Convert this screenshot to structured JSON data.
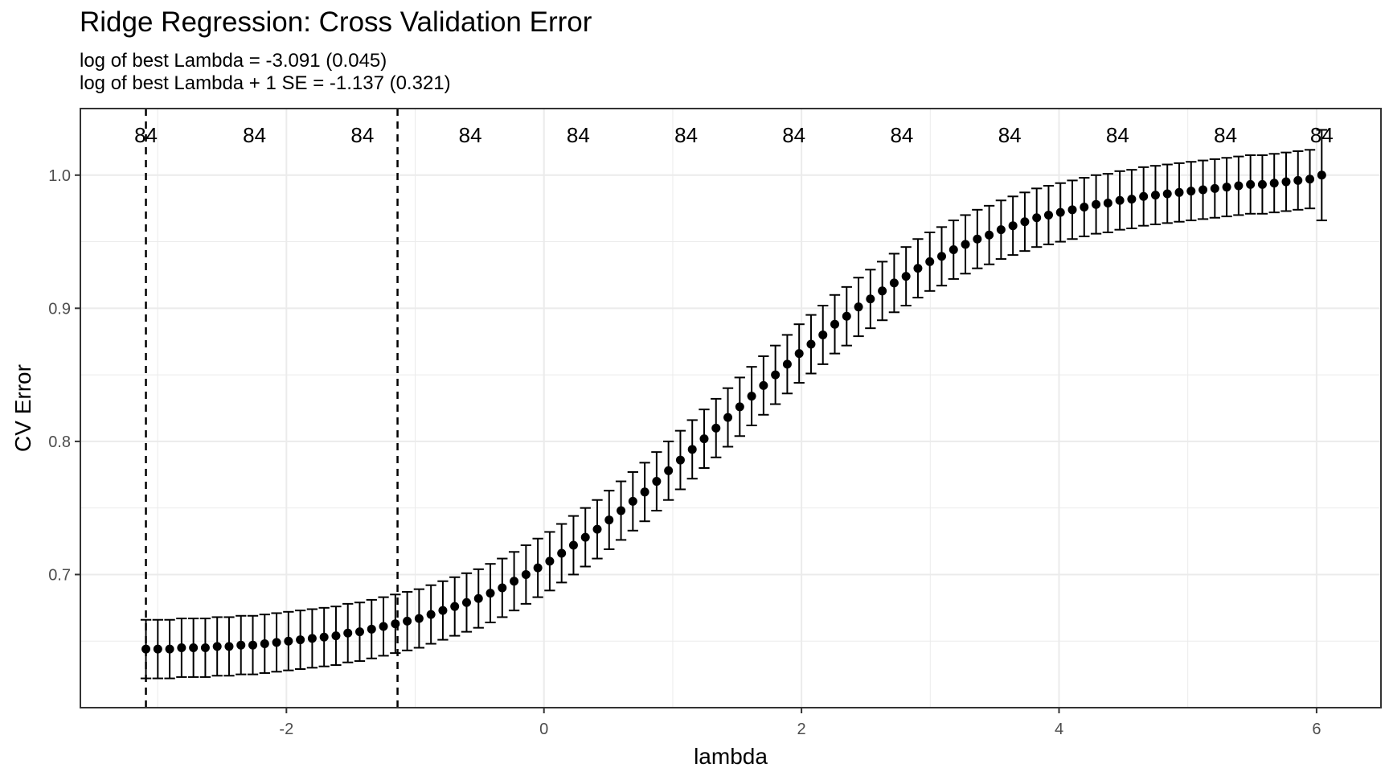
{
  "chart_data": {
    "type": "scatter",
    "title": "Ridge Regression: Cross Validation Error",
    "subtitle_lines": [
      "log of best Lambda = -3.091  (0.045)",
      "log of best Lambda + 1 SE = -1.137 (0.321)"
    ],
    "xlabel": "lambda",
    "ylabel": "CV Error",
    "xlim": [
      -3.6,
      6.5
    ],
    "ylim": [
      0.6,
      1.05
    ],
    "x_ticks": [
      -2,
      0,
      2,
      4,
      6
    ],
    "x_tick_labels": [
      "-2",
      "0",
      "2",
      "4",
      "6"
    ],
    "y_ticks": [
      0.7,
      0.8,
      0.9,
      1.0
    ],
    "y_tick_labels": [
      "0.7",
      "0.8",
      "0.9",
      "1.0"
    ],
    "grid": true,
    "vlines": [
      -3.091,
      -1.137
    ],
    "top_labels": {
      "x": [
        -3.091,
        -2.248,
        -1.41,
        -0.572,
        0.266,
        1.104,
        1.941,
        2.779,
        3.617,
        4.455,
        5.293,
        6.04
      ],
      "labels": [
        "84",
        "84",
        "84",
        "84",
        "84",
        "84",
        "84",
        "84",
        "84",
        "84",
        "84",
        "84"
      ]
    },
    "series": [
      {
        "x_start": -3.091,
        "x_end": 6.04,
        "n_points": 100,
        "y": [
          0.644,
          0.644,
          0.644,
          0.645,
          0.645,
          0.645,
          0.646,
          0.646,
          0.647,
          0.647,
          0.648,
          0.649,
          0.65,
          0.651,
          0.652,
          0.653,
          0.654,
          0.656,
          0.657,
          0.659,
          0.661,
          0.663,
          0.665,
          0.667,
          0.67,
          0.673,
          0.676,
          0.679,
          0.682,
          0.686,
          0.69,
          0.695,
          0.7,
          0.705,
          0.71,
          0.716,
          0.722,
          0.728,
          0.734,
          0.741,
          0.748,
          0.755,
          0.762,
          0.77,
          0.778,
          0.786,
          0.794,
          0.802,
          0.81,
          0.818,
          0.826,
          0.834,
          0.842,
          0.85,
          0.858,
          0.866,
          0.873,
          0.88,
          0.888,
          0.894,
          0.901,
          0.907,
          0.913,
          0.919,
          0.924,
          0.93,
          0.935,
          0.939,
          0.944,
          0.948,
          0.952,
          0.955,
          0.959,
          0.962,
          0.965,
          0.968,
          0.97,
          0.972,
          0.974,
          0.976,
          0.978,
          0.979,
          0.981,
          0.982,
          0.984,
          0.985,
          0.986,
          0.987,
          0.988,
          0.989,
          0.99,
          0.991,
          0.992,
          0.993,
          0.993,
          0.994,
          0.995,
          0.996,
          0.997,
          1.0
        ],
        "se": [
          0.022,
          0.022,
          0.022,
          0.022,
          0.022,
          0.022,
          0.022,
          0.022,
          0.022,
          0.022,
          0.022,
          0.022,
          0.022,
          0.022,
          0.022,
          0.022,
          0.022,
          0.022,
          0.022,
          0.022,
          0.022,
          0.022,
          0.022,
          0.022,
          0.022,
          0.022,
          0.022,
          0.022,
          0.022,
          0.022,
          0.022,
          0.022,
          0.022,
          0.022,
          0.022,
          0.022,
          0.022,
          0.022,
          0.022,
          0.022,
          0.022,
          0.022,
          0.022,
          0.022,
          0.022,
          0.022,
          0.022,
          0.022,
          0.022,
          0.022,
          0.022,
          0.022,
          0.022,
          0.022,
          0.022,
          0.022,
          0.022,
          0.022,
          0.022,
          0.022,
          0.022,
          0.022,
          0.022,
          0.022,
          0.022,
          0.022,
          0.022,
          0.022,
          0.022,
          0.022,
          0.022,
          0.022,
          0.022,
          0.022,
          0.022,
          0.022,
          0.022,
          0.022,
          0.022,
          0.022,
          0.022,
          0.022,
          0.022,
          0.022,
          0.022,
          0.022,
          0.022,
          0.022,
          0.022,
          0.022,
          0.022,
          0.022,
          0.022,
          0.022,
          0.022,
          0.022,
          0.022,
          0.022,
          0.022,
          0.034
        ]
      }
    ],
    "colors": {
      "points": "#000000",
      "error_bars": "#000000",
      "grid": "#ebebeb",
      "panel_border": "#333333",
      "tick_label": "#4d4d4d"
    }
  }
}
